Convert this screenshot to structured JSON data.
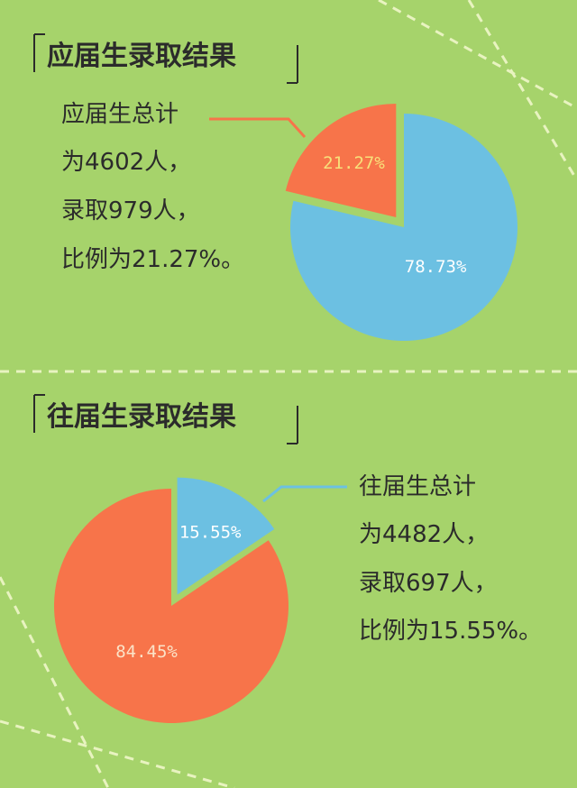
{
  "chart_data": [
    {
      "type": "pie",
      "title": "应届生录取结果",
      "annotation": [
        "应届生总计",
        "为4602人，",
        "录取979人，",
        "比例为21.27%。"
      ],
      "values": [
        21.27,
        78.73
      ],
      "value_labels": [
        "21.27%",
        "78.73%"
      ],
      "colors": [
        "#f7744a",
        "#6cc0e2"
      ],
      "label_colors": [
        "#f8e07a",
        "#ffffff"
      ],
      "explode": [
        true,
        false
      ],
      "direction": "counterclockwise"
    },
    {
      "type": "pie",
      "title": "往届生录取结果",
      "annotation": [
        "往届生总计",
        "为4482人，",
        "录取697人，",
        "比例为15.55%。"
      ],
      "values": [
        15.55,
        84.45
      ],
      "value_labels": [
        "15.55%",
        "84.45%"
      ],
      "colors": [
        "#6cc0e2",
        "#f7744a"
      ],
      "label_colors": [
        "#ffffff",
        "#fbe3c8"
      ],
      "explode": [
        true,
        false
      ],
      "direction": "clockwise"
    }
  ]
}
